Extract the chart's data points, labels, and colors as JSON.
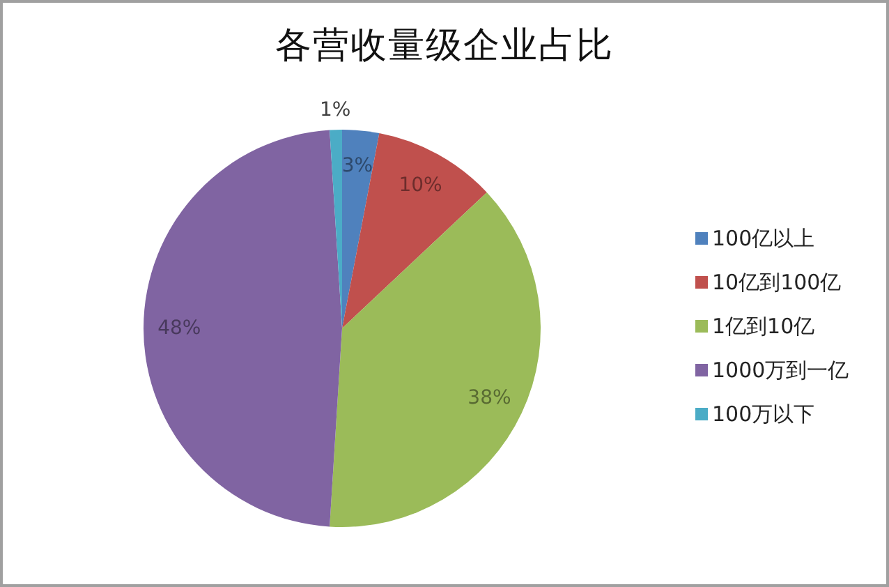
{
  "chart_data": {
    "type": "pie",
    "title": "各营收量级企业占比",
    "categories": [
      "100亿以上",
      "10亿到100亿",
      "1亿到10亿",
      "1000万到一亿",
      "100万以下"
    ],
    "values": [
      3,
      10,
      38,
      48,
      1
    ],
    "colors": [
      "#4f81bd",
      "#c0504d",
      "#9bbb59",
      "#8064a2",
      "#4bacc6"
    ],
    "value_labels": [
      "3%",
      "10%",
      "38%",
      "48%",
      "1%"
    ],
    "legend": "right"
  }
}
